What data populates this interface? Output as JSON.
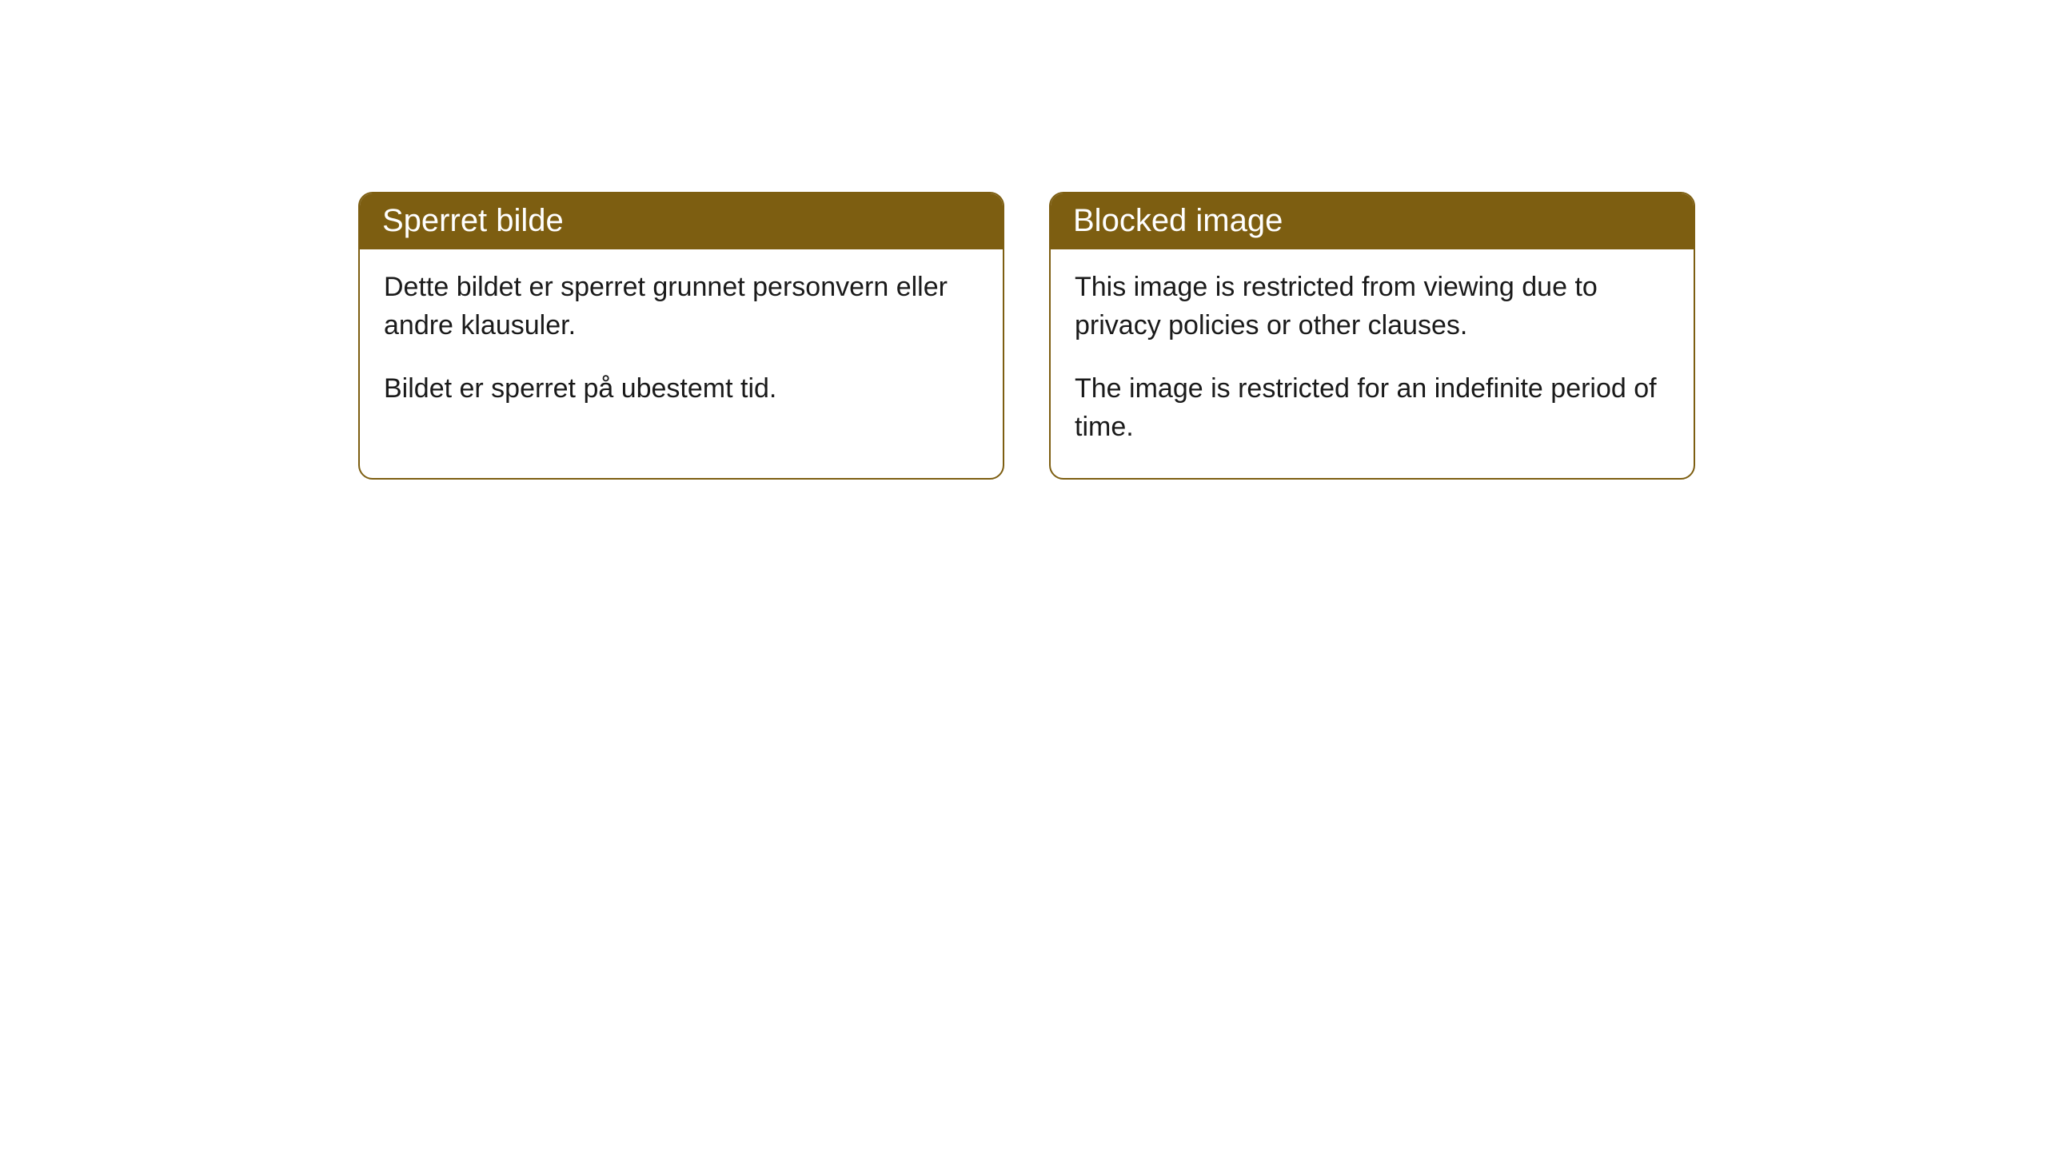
{
  "cards": [
    {
      "title": "Sperret bilde",
      "paragraph1": "Dette bildet er sperret grunnet personvern eller andre klausuler.",
      "paragraph2": "Bildet er sperret på ubestemt tid."
    },
    {
      "title": "Blocked image",
      "paragraph1": "This image is restricted from viewing due to privacy policies or other clauses.",
      "paragraph2": "The image is restricted for an indefinite period of time."
    }
  ],
  "style": {
    "header_bg_color": "#7d5e11",
    "border_color": "#7d5e11",
    "header_text_color": "#ffffff",
    "body_text_color": "#1a1a1a",
    "body_bg_color": "#ffffff",
    "border_radius": 18,
    "header_fontsize": 40,
    "body_fontsize": 34
  }
}
